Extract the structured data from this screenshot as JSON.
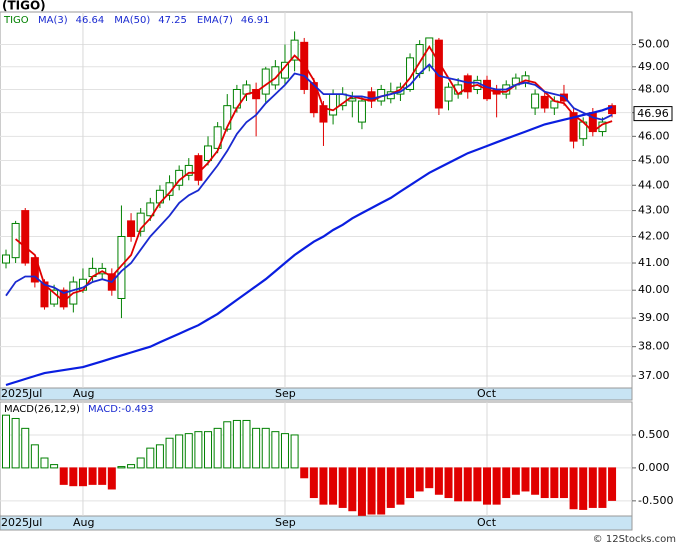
{
  "chart_data": [
    {
      "type": "candlestick",
      "title": "(TIGO)",
      "symbol": "TIGO",
      "symbol_color": "#008000",
      "categories": [
        "2025Jul",
        null,
        null,
        null,
        null,
        null,
        null,
        null,
        "Aug",
        null,
        null,
        null,
        null,
        null,
        null,
        null,
        null,
        null,
        null,
        null,
        null,
        null,
        null,
        null,
        null,
        null,
        null,
        null,
        null,
        "Sep",
        null,
        null,
        null,
        null,
        null,
        null,
        null,
        null,
        null,
        null,
        null,
        null,
        null,
        null,
        null,
        null,
        null,
        null,
        null,
        null,
        "Oct",
        null,
        null,
        null,
        null,
        null,
        null,
        null,
        null,
        null,
        null,
        null,
        null,
        null
      ],
      "open": [
        41.0,
        41.2,
        43.0,
        41.2,
        40.3,
        39.5,
        40.0,
        39.5,
        40.0,
        40.5,
        40.6,
        40.6,
        39.7,
        42.6,
        42.2,
        42.8,
        43.3,
        43.6,
        44.0,
        44.4,
        45.2,
        45.0,
        45.5,
        46.3,
        47.2,
        47.8,
        48.0,
        47.8,
        48.2,
        48.5,
        49.3,
        50.1,
        48.3,
        47.3,
        46.9,
        47.3,
        47.5,
        46.6,
        47.9,
        47.5,
        47.6,
        47.8,
        48.0,
        48.7,
        49.0,
        50.2,
        47.5,
        47.8,
        48.6,
        48.0,
        48.4,
        48.0,
        47.8,
        48.2,
        48.3,
        47.2,
        47.7,
        47.2,
        47.8,
        47.0,
        45.9,
        47.0,
        46.2,
        47.3
      ],
      "high": [
        41.5,
        42.6,
        43.1,
        41.3,
        40.4,
        40.2,
        40.1,
        40.5,
        40.8,
        41.2,
        41.0,
        40.8,
        43.2,
        42.9,
        43.1,
        43.5,
        44.0,
        44.4,
        44.8,
        45.1,
        45.3,
        46.0,
        46.6,
        47.8,
        48.2,
        48.4,
        48.3,
        49.0,
        49.3,
        50.0,
        50.6,
        50.3,
        48.5,
        47.5,
        48.0,
        48.1,
        47.9,
        47.7,
        48.1,
        48.2,
        48.3,
        48.3,
        49.6,
        50.2,
        50.3,
        50.3,
        48.3,
        48.5,
        48.7,
        48.6,
        48.6,
        48.2,
        48.4,
        48.7,
        48.8,
        48.0,
        47.9,
        47.7,
        48.2,
        47.2,
        46.8,
        47.2,
        46.8,
        47.4
      ],
      "low": [
        40.8,
        41.0,
        40.9,
        40.1,
        39.3,
        39.4,
        39.3,
        39.2,
        39.9,
        40.3,
        40.4,
        39.8,
        39.0,
        41.8,
        42.0,
        42.6,
        43.1,
        43.4,
        43.8,
        44.2,
        44.0,
        44.8,
        45.3,
        46.2,
        47.0,
        47.5,
        46.0,
        47.4,
        48.0,
        48.2,
        48.8,
        47.8,
        46.8,
        45.6,
        46.5,
        47.1,
        46.8,
        46.3,
        47.2,
        47.3,
        47.4,
        47.5,
        47.9,
        48.5,
        48.8,
        46.9,
        47.1,
        47.6,
        47.6,
        47.8,
        47.5,
        46.8,
        47.6,
        48.0,
        48.1,
        46.9,
        47.0,
        46.9,
        47.3,
        45.5,
        45.6,
        46.0,
        46.0,
        46.8
      ],
      "close": [
        41.3,
        42.5,
        41.0,
        40.3,
        39.4,
        40.0,
        39.4,
        40.3,
        40.4,
        40.8,
        40.8,
        40.0,
        42.0,
        42.0,
        42.9,
        43.3,
        43.8,
        44.1,
        44.6,
        44.8,
        44.2,
        45.6,
        46.4,
        47.3,
        48.0,
        48.2,
        47.6,
        48.9,
        49.0,
        49.2,
        50.2,
        48.0,
        47.0,
        46.6,
        47.8,
        47.8,
        47.6,
        47.5,
        47.5,
        48.0,
        47.9,
        48.1,
        49.4,
        50.0,
        50.3,
        47.2,
        48.1,
        48.2,
        47.9,
        48.4,
        47.6,
        47.8,
        48.2,
        48.5,
        48.6,
        47.8,
        47.2,
        47.5,
        47.5,
        45.8,
        46.6,
        46.2,
        46.6,
        46.96
      ],
      "up_color": "#008000",
      "down_color": "#e00000",
      "series": [
        {
          "name": "MA(3)",
          "last": 46.64,
          "color": "#e00000",
          "values": [
            null,
            41.9,
            41.6,
            41.3,
            40.2,
            39.9,
            39.6,
            39.9,
            40.0,
            40.5,
            40.7,
            40.5,
            40.9,
            41.3,
            42.3,
            42.7,
            43.3,
            43.7,
            44.2,
            44.5,
            44.5,
            44.9,
            45.4,
            46.4,
            47.2,
            47.8,
            47.9,
            48.2,
            48.5,
            49.0,
            49.5,
            49.1,
            48.4,
            47.2,
            47.1,
            47.4,
            47.7,
            47.6,
            47.5,
            47.7,
            47.8,
            48.0,
            48.5,
            49.2,
            49.9,
            49.2,
            48.5,
            47.8,
            48.1,
            48.2,
            48.0,
            47.9,
            47.9,
            48.2,
            48.4,
            48.3,
            47.9,
            47.5,
            47.4,
            46.9,
            46.6,
            46.2,
            46.5,
            46.64
          ]
        },
        {
          "name": "MA(50)",
          "last": 47.25,
          "color": "#0a1ee0",
          "values": [
            36.7,
            36.8,
            36.9,
            37.0,
            37.1,
            37.15,
            37.2,
            37.25,
            37.3,
            37.4,
            37.5,
            37.6,
            37.7,
            37.8,
            37.9,
            38.0,
            38.15,
            38.3,
            38.45,
            38.6,
            38.75,
            38.95,
            39.15,
            39.4,
            39.65,
            39.9,
            40.15,
            40.4,
            40.7,
            41.0,
            41.3,
            41.55,
            41.8,
            42.0,
            42.25,
            42.45,
            42.7,
            42.9,
            43.1,
            43.3,
            43.5,
            43.75,
            44.0,
            44.25,
            44.5,
            44.7,
            44.9,
            45.1,
            45.3,
            45.45,
            45.6,
            45.75,
            45.9,
            46.05,
            46.2,
            46.35,
            46.5,
            46.6,
            46.7,
            46.8,
            46.9,
            47.0,
            47.1,
            47.25
          ]
        },
        {
          "name": "EMA(7)",
          "last": 46.91,
          "color": "#1a2ad0",
          "values": [
            39.8,
            40.3,
            40.5,
            40.5,
            40.2,
            40.1,
            39.9,
            40.0,
            40.1,
            40.3,
            40.4,
            40.3,
            40.7,
            41.0,
            41.5,
            42.0,
            42.4,
            42.8,
            43.3,
            43.6,
            43.8,
            44.3,
            44.8,
            45.4,
            46.1,
            46.6,
            46.9,
            47.4,
            47.8,
            48.2,
            48.7,
            48.6,
            48.2,
            47.8,
            47.8,
            47.8,
            47.7,
            47.7,
            47.6,
            47.7,
            47.8,
            47.9,
            48.2,
            48.7,
            49.1,
            48.6,
            48.5,
            48.4,
            48.3,
            48.3,
            48.1,
            48.0,
            48.0,
            48.2,
            48.3,
            48.2,
            47.9,
            47.8,
            47.7,
            47.2,
            47.0,
            46.8,
            46.7,
            46.91
          ]
        }
      ],
      "last_price": 46.96,
      "log_scale": true,
      "grid": true,
      "ylim": [
        36.6,
        51.5
      ],
      "yticks": [
        {
          "value": 37,
          "label": "37.00"
        },
        {
          "value": 38,
          "label": "38.00"
        },
        {
          "value": 39,
          "label": "39.00"
        },
        {
          "value": 40,
          "label": "40.00"
        },
        {
          "value": 41,
          "label": "41.00"
        },
        {
          "value": 42,
          "label": "42.00"
        },
        {
          "value": 43,
          "label": "43.00"
        },
        {
          "value": 44,
          "label": "44.00"
        },
        {
          "value": 45,
          "label": "45.00"
        },
        {
          "value": 46,
          "label": "46.00"
        },
        {
          "value": 47,
          "label": "47.00"
        },
        {
          "value": 48,
          "label": "48.00"
        },
        {
          "value": 49,
          "label": "49.00"
        },
        {
          "value": 50,
          "label": "50.00"
        }
      ]
    },
    {
      "type": "macd",
      "title": "MACD(26,12,9)",
      "value_text": "MACD:-0.493",
      "categories": [
        "2025Jul",
        null,
        null,
        null,
        null,
        null,
        null,
        null,
        "Aug",
        null,
        null,
        null,
        null,
        null,
        null,
        null,
        null,
        null,
        null,
        null,
        null,
        null,
        null,
        null,
        null,
        null,
        null,
        null,
        null,
        "Sep",
        null,
        null,
        null,
        null,
        null,
        null,
        null,
        null,
        null,
        null,
        null,
        null,
        null,
        null,
        null,
        null,
        null,
        null,
        null,
        null,
        "Oct",
        null,
        null,
        null,
        null,
        null,
        null,
        null,
        null,
        null,
        null,
        null,
        null,
        null
      ],
      "values": [
        0.8,
        0.75,
        0.6,
        0.35,
        0.15,
        0.05,
        -0.25,
        -0.27,
        -0.27,
        -0.25,
        -0.25,
        -0.32,
        0.02,
        0.05,
        0.15,
        0.3,
        0.35,
        0.45,
        0.5,
        0.52,
        0.55,
        0.55,
        0.6,
        0.7,
        0.72,
        0.72,
        0.6,
        0.6,
        0.55,
        0.52,
        0.5,
        -0.15,
        -0.45,
        -0.55,
        -0.55,
        -0.6,
        -0.65,
        -0.72,
        -0.7,
        -0.7,
        -0.6,
        -0.55,
        -0.45,
        -0.35,
        -0.3,
        -0.4,
        -0.45,
        -0.5,
        -0.5,
        -0.5,
        -0.55,
        -0.55,
        -0.45,
        -0.4,
        -0.35,
        -0.4,
        -0.45,
        -0.45,
        -0.45,
        -0.62,
        -0.63,
        -0.6,
        -0.6,
        -0.493
      ],
      "up_color": "#008000",
      "down_color": "#e00000",
      "grid": true,
      "ylim": [
        -0.73,
        1.0
      ],
      "yticks": [
        {
          "value": -0.5,
          "label": "-0.500"
        },
        {
          "value": 0,
          "label": "0.000"
        },
        {
          "value": 0.5,
          "label": "0.500"
        }
      ]
    }
  ],
  "footer": "© 12Stocks.com"
}
